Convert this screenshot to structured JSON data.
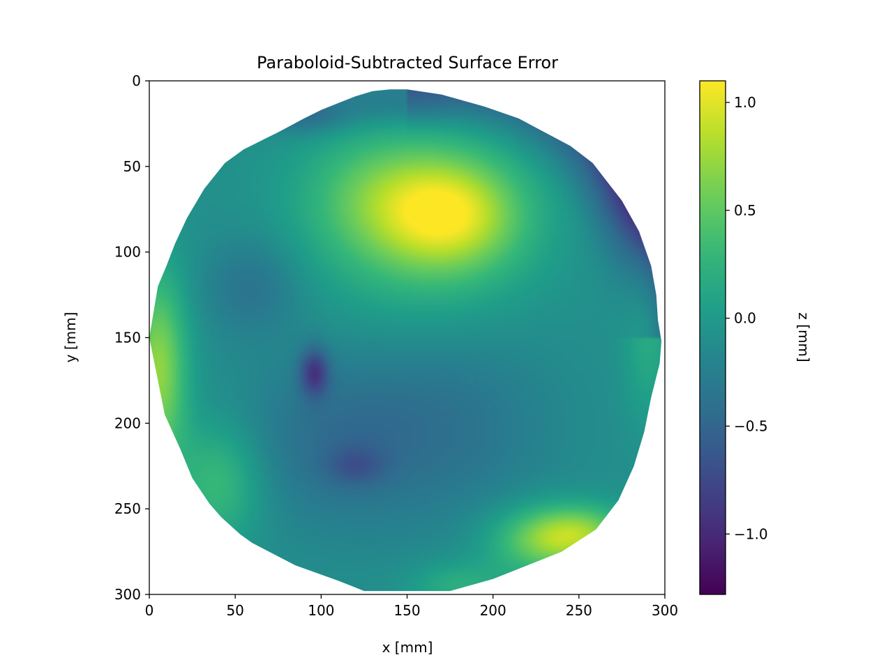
{
  "chart_data": {
    "type": "heatmap",
    "title": "Paraboloid-Subtracted Surface Error",
    "xlabel": "x [mm]",
    "ylabel": "y [mm]",
    "xlim": [
      0,
      300
    ],
    "ylim": [
      300,
      0
    ],
    "xticks": [
      0,
      50,
      100,
      150,
      200,
      250,
      300
    ],
    "yticks": [
      0,
      50,
      100,
      150,
      200,
      250,
      300
    ],
    "colorbar": {
      "label": "z [mm]",
      "range": [
        -1.28,
        1.1
      ],
      "ticks": [
        1.0,
        0.5,
        0.0,
        -0.5,
        -1.0
      ],
      "tick_labels": [
        "1.0",
        "0.5",
        "0.0",
        "−0.5",
        "−1.0"
      ],
      "colormap": "viridis"
    },
    "aperture_outline_mm": [
      [
        140,
        5
      ],
      [
        150,
        5
      ],
      [
        170,
        8
      ],
      [
        195,
        15
      ],
      [
        215,
        22
      ],
      [
        245,
        38
      ],
      [
        258,
        48
      ],
      [
        275,
        70
      ],
      [
        285,
        88
      ],
      [
        292,
        108
      ],
      [
        295,
        125
      ],
      [
        296,
        140
      ],
      [
        298,
        152
      ],
      [
        297,
        165
      ],
      [
        292,
        185
      ],
      [
        288,
        205
      ],
      [
        282,
        225
      ],
      [
        273,
        245
      ],
      [
        260,
        262
      ],
      [
        240,
        275
      ],
      [
        220,
        283
      ],
      [
        200,
        291
      ],
      [
        175,
        298
      ],
      [
        150,
        298
      ],
      [
        125,
        298
      ],
      [
        110,
        292
      ],
      [
        85,
        283
      ],
      [
        60,
        270
      ],
      [
        53,
        265
      ],
      [
        42,
        255
      ],
      [
        35,
        247
      ],
      [
        25,
        232
      ],
      [
        18,
        215
      ],
      [
        9,
        195
      ],
      [
        6,
        180
      ],
      [
        3,
        165
      ],
      [
        0,
        150
      ],
      [
        2,
        138
      ],
      [
        5,
        120
      ],
      [
        10,
        108
      ],
      [
        15,
        95
      ],
      [
        22,
        80
      ],
      [
        32,
        63
      ],
      [
        44,
        48
      ],
      [
        55,
        40
      ],
      [
        65,
        35
      ],
      [
        75,
        30
      ],
      [
        90,
        22
      ],
      [
        100,
        17
      ],
      [
        110,
        13
      ],
      [
        120,
        9
      ],
      [
        130,
        6
      ]
    ],
    "features_mm": [
      {
        "x": 175,
        "y": 77,
        "z": 0.85,
        "sx": 28,
        "sy": 22
      },
      {
        "x": 160,
        "y": 85,
        "z": 0.55,
        "sx": 45,
        "sy": 38
      },
      {
        "x": 130,
        "y": 65,
        "z": 0.35,
        "sx": 30,
        "sy": 25
      },
      {
        "x": 5,
        "y": 170,
        "z": 0.9,
        "sx": 12,
        "sy": 40
      },
      {
        "x": 40,
        "y": 235,
        "z": 0.5,
        "sx": 18,
        "sy": 25
      },
      {
        "x": 250,
        "y": 265,
        "z": 0.85,
        "sx": 22,
        "sy": 12
      },
      {
        "x": 225,
        "y": 270,
        "z": 0.5,
        "sx": 22,
        "sy": 15
      },
      {
        "x": 180,
        "y": 295,
        "z": 0.35,
        "sx": 20,
        "sy": 10
      },
      {
        "x": 290,
        "y": 150,
        "z": 0.3,
        "sx": 10,
        "sy": 35
      },
      {
        "x": 96,
        "y": 170,
        "z": -0.75,
        "sx": 6,
        "sy": 10
      },
      {
        "x": 110,
        "y": 210,
        "z": -0.35,
        "sx": 40,
        "sy": 35
      },
      {
        "x": 120,
        "y": 225,
        "z": -0.3,
        "sx": 12,
        "sy": 8
      },
      {
        "x": 180,
        "y": 200,
        "z": -0.25,
        "sx": 40,
        "sy": 40
      },
      {
        "x": 290,
        "y": 60,
        "z": -0.6,
        "sx": 20,
        "sy": 30
      },
      {
        "x": 145,
        "y": 12,
        "z": -0.3,
        "sx": 30,
        "sy": 10
      },
      {
        "x": 90,
        "y": 20,
        "z": -0.4,
        "sx": 18,
        "sy": 8
      },
      {
        "x": 60,
        "y": 120,
        "z": -0.3,
        "sx": 20,
        "sy": 20
      }
    ],
    "base_value": -0.1,
    "outer_edge_value": -0.7
  }
}
